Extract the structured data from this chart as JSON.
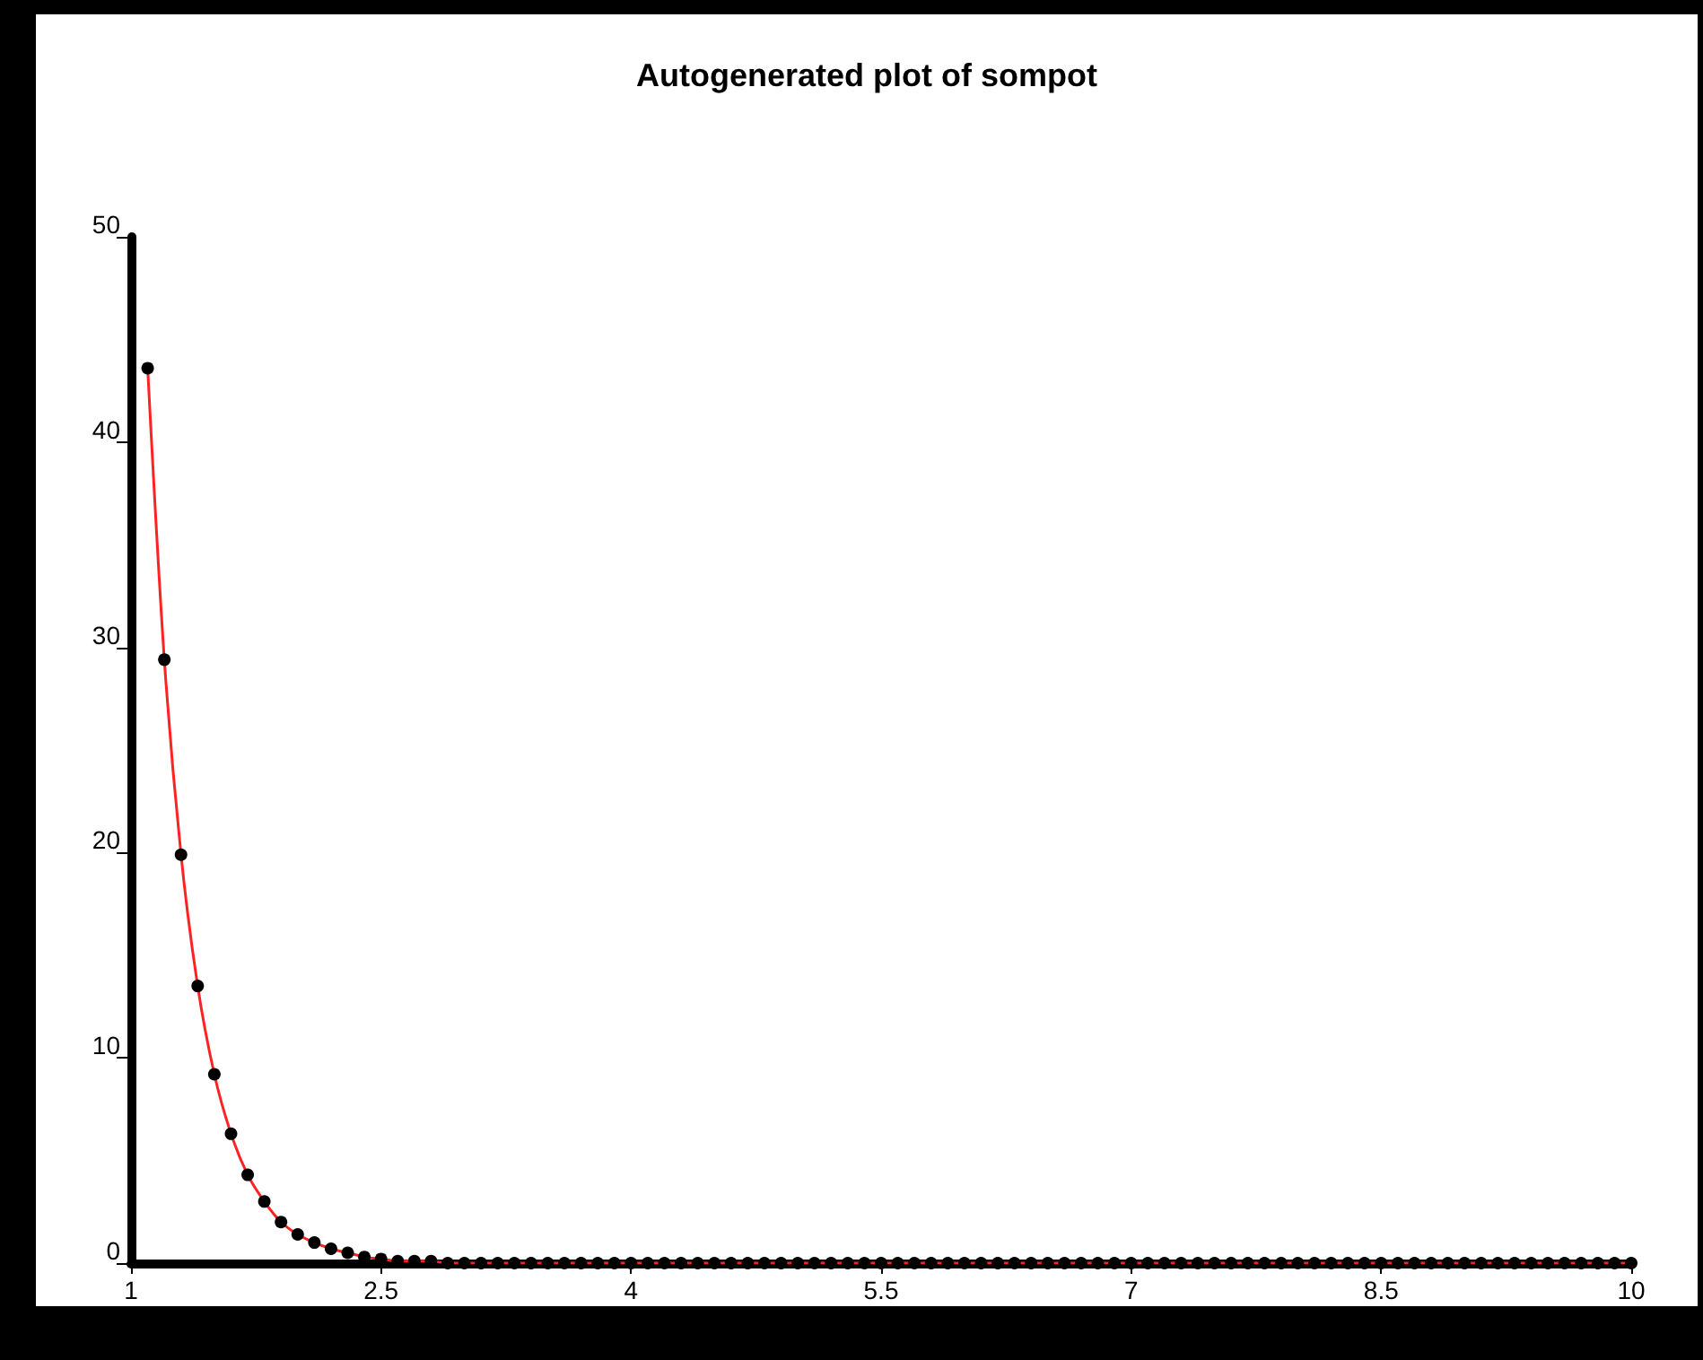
{
  "chart_data": {
    "type": "line",
    "title": "Autogenerated plot of sompot",
    "x": [
      1.1,
      1.2,
      1.3,
      1.4,
      1.5,
      1.6,
      1.7,
      1.8,
      1.9,
      2.0,
      2.1,
      2.2,
      2.3,
      2.4,
      2.5,
      2.6,
      2.7,
      2.8,
      2.9,
      3.0,
      3.1,
      3.2,
      3.3,
      3.4,
      3.5,
      3.6,
      3.7,
      3.8,
      3.9,
      4.0,
      4.1,
      4.2,
      4.3,
      4.4,
      4.5,
      4.6,
      4.7,
      4.8,
      4.9,
      5.0,
      5.1,
      5.2,
      5.3,
      5.4,
      5.5,
      5.6,
      5.7,
      5.8,
      5.9,
      6.0,
      6.1,
      6.2,
      6.3,
      6.4,
      6.5,
      6.6,
      6.7,
      6.8,
      6.9,
      7.0,
      7.1,
      7.2,
      7.3,
      7.4,
      7.5,
      7.6,
      7.7,
      7.8,
      7.9,
      8.0,
      8.1,
      8.2,
      8.3,
      8.4,
      8.5,
      8.6,
      8.7,
      8.8,
      8.9,
      9.0,
      9.1,
      9.2,
      9.3,
      9.4,
      9.5,
      9.6,
      9.7,
      9.8,
      9.9,
      10.0
    ],
    "series": [
      {
        "color": "#ff2222",
        "values": [
          43.6,
          29.4,
          19.9,
          13.5,
          9.2,
          6.3,
          4.3,
          3.0,
          2.0,
          1.4,
          1.0,
          0.7,
          0.5,
          0.3,
          0.2,
          0.1,
          0.1,
          0.1,
          0,
          0,
          0,
          0,
          0,
          0,
          0,
          0,
          0,
          0,
          0,
          0,
          0,
          0,
          0,
          0,
          0,
          0,
          0,
          0,
          0,
          0,
          0,
          0,
          0,
          0,
          0,
          0,
          0,
          0,
          0,
          0,
          0,
          0,
          0,
          0,
          0,
          0,
          0,
          0,
          0,
          0,
          0,
          0,
          0,
          0,
          0,
          0,
          0,
          0,
          0,
          0,
          0,
          0,
          0,
          0,
          0,
          0,
          0,
          0,
          0,
          0,
          0,
          0,
          0,
          0,
          0,
          0,
          0,
          0,
          0,
          0
        ]
      }
    ],
    "xlim": [
      1,
      10
    ],
    "xticks": [
      1,
      2.5,
      4,
      5.5,
      7,
      8.5,
      10
    ],
    "ylim": [
      0,
      50
    ],
    "yticks": [
      0,
      10,
      20,
      30,
      40,
      50
    ],
    "grid": false,
    "marker": "circle",
    "line_style": "solid"
  }
}
